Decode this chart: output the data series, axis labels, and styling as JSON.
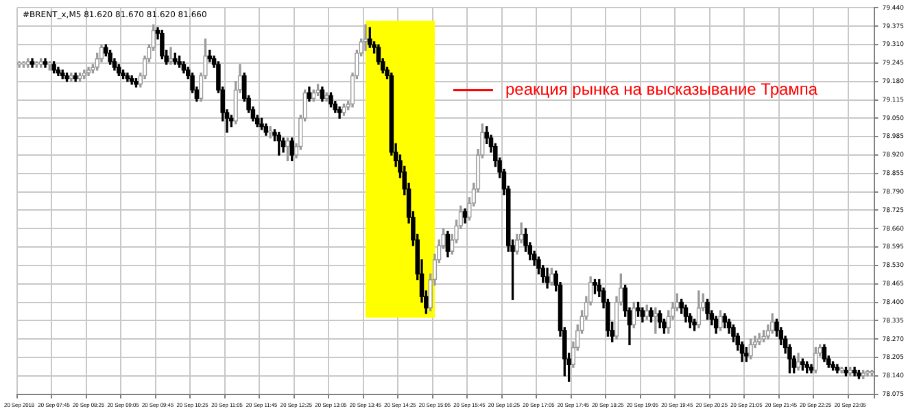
{
  "chart_data": {
    "type": "candlestick",
    "title": "#BRENT_x,M5 81.620 81.670 81.620 81.660",
    "ohlc": [
      [
        79.24,
        79.25,
        79.23,
        79.24
      ],
      [
        79.24,
        79.25,
        79.23,
        79.24
      ],
      [
        79.24,
        79.26,
        79.23,
        79.25
      ],
      [
        79.25,
        79.26,
        79.23,
        79.24
      ],
      [
        79.24,
        79.25,
        79.23,
        79.24
      ],
      [
        79.24,
        79.26,
        79.23,
        79.25
      ],
      [
        79.25,
        79.26,
        79.23,
        79.24
      ],
      [
        79.24,
        79.25,
        79.22,
        79.24
      ],
      [
        79.24,
        79.25,
        79.21,
        79.22
      ],
      [
        79.22,
        79.23,
        79.2,
        79.21
      ],
      [
        79.21,
        79.22,
        79.19,
        79.2
      ],
      [
        79.2,
        79.21,
        79.18,
        79.19
      ],
      [
        79.19,
        79.21,
        79.18,
        79.2
      ],
      [
        79.2,
        79.21,
        79.18,
        79.19
      ],
      [
        79.19,
        79.21,
        79.18,
        79.2
      ],
      [
        79.2,
        79.22,
        79.19,
        79.21
      ],
      [
        79.21,
        79.23,
        79.2,
        79.22
      ],
      [
        79.22,
        79.24,
        79.21,
        79.23
      ],
      [
        79.23,
        79.28,
        79.22,
        79.26
      ],
      [
        79.26,
        79.31,
        79.25,
        79.3
      ],
      [
        79.3,
        79.31,
        79.27,
        79.28
      ],
      [
        79.28,
        79.29,
        79.24,
        79.25
      ],
      [
        79.25,
        79.26,
        79.22,
        79.23
      ],
      [
        79.23,
        79.24,
        79.2,
        79.21
      ],
      [
        79.21,
        79.22,
        79.19,
        79.2
      ],
      [
        79.2,
        79.21,
        79.18,
        79.19
      ],
      [
        79.19,
        79.2,
        79.17,
        79.18
      ],
      [
        79.18,
        79.19,
        79.16,
        79.17
      ],
      [
        79.17,
        79.21,
        79.16,
        79.2
      ],
      [
        79.2,
        79.27,
        79.19,
        79.26
      ],
      [
        79.26,
        79.31,
        79.25,
        79.3
      ],
      [
        79.3,
        79.38,
        79.29,
        79.36
      ],
      [
        79.36,
        79.37,
        79.33,
        79.35
      ],
      [
        79.35,
        79.36,
        79.26,
        79.27
      ],
      [
        79.27,
        79.29,
        79.24,
        79.25
      ],
      [
        79.25,
        79.3,
        79.24,
        79.26
      ],
      [
        79.26,
        79.28,
        79.24,
        79.25
      ],
      [
        79.25,
        79.27,
        79.23,
        79.24
      ],
      [
        79.24,
        79.25,
        79.21,
        79.22
      ],
      [
        79.22,
        79.23,
        79.19,
        79.2
      ],
      [
        79.2,
        79.21,
        79.14,
        79.15
      ],
      [
        79.15,
        79.16,
        79.11,
        79.12
      ],
      [
        79.12,
        79.21,
        79.11,
        79.2
      ],
      [
        79.2,
        79.33,
        79.19,
        79.27
      ],
      [
        79.27,
        79.29,
        79.25,
        79.26
      ],
      [
        79.26,
        79.27,
        79.23,
        79.24
      ],
      [
        79.24,
        79.25,
        79.14,
        79.15
      ],
      [
        79.15,
        79.16,
        79.04,
        79.07
      ],
      [
        79.07,
        79.08,
        79.0,
        79.05
      ],
      [
        79.05,
        79.06,
        79.02,
        79.04
      ],
      [
        79.04,
        79.18,
        79.03,
        79.15
      ],
      [
        79.15,
        79.24,
        79.14,
        79.2
      ],
      [
        79.2,
        79.21,
        79.11,
        79.12
      ],
      [
        79.12,
        79.13,
        79.07,
        79.08
      ],
      [
        79.08,
        79.09,
        79.04,
        79.05
      ],
      [
        79.05,
        79.06,
        79.02,
        79.03
      ],
      [
        79.03,
        79.05,
        79.01,
        79.02
      ],
      [
        79.02,
        79.03,
        78.99,
        79.0
      ],
      [
        79.0,
        79.02,
        78.98,
        79.0
      ],
      [
        79.0,
        79.01,
        78.97,
        78.99
      ],
      [
        78.99,
        79.0,
        78.92,
        78.97
      ],
      [
        78.97,
        78.98,
        78.93,
        78.95
      ],
      [
        78.95,
        78.98,
        78.9,
        78.97
      ],
      [
        78.97,
        78.98,
        78.9,
        78.92
      ],
      [
        78.92,
        78.96,
        78.91,
        78.95
      ],
      [
        78.95,
        79.06,
        78.94,
        79.05
      ],
      [
        79.05,
        79.15,
        79.04,
        79.14
      ],
      [
        79.14,
        79.16,
        79.11,
        79.12
      ],
      [
        79.12,
        79.15,
        79.11,
        79.14
      ],
      [
        79.14,
        79.17,
        79.13,
        79.15
      ],
      [
        79.15,
        79.16,
        79.11,
        79.12
      ],
      [
        79.12,
        79.14,
        79.11,
        79.13
      ],
      [
        79.13,
        79.14,
        79.09,
        79.1
      ],
      [
        79.1,
        79.11,
        79.07,
        79.08
      ],
      [
        79.08,
        79.09,
        79.05,
        79.07
      ],
      [
        79.07,
        79.1,
        79.06,
        79.09
      ],
      [
        79.09,
        79.11,
        79.08,
        79.1
      ],
      [
        79.1,
        79.21,
        79.09,
        79.2
      ],
      [
        79.2,
        79.29,
        79.19,
        79.28
      ],
      [
        79.28,
        79.33,
        79.27,
        79.32
      ],
      [
        79.32,
        79.38,
        79.29,
        79.33
      ],
      [
        79.33,
        79.37,
        79.3,
        79.31
      ],
      [
        79.31,
        79.32,
        79.28,
        79.3
      ],
      [
        79.3,
        79.31,
        79.24,
        79.25
      ],
      [
        79.25,
        79.26,
        79.21,
        79.22
      ],
      [
        79.22,
        79.23,
        79.19,
        79.2
      ],
      [
        79.2,
        79.21,
        78.92,
        78.93
      ],
      [
        78.93,
        78.96,
        78.88,
        78.9
      ],
      [
        78.9,
        78.92,
        78.84,
        78.86
      ],
      [
        78.86,
        78.88,
        78.78,
        78.8
      ],
      [
        78.8,
        78.82,
        78.68,
        78.7
      ],
      [
        78.7,
        78.72,
        78.6,
        78.62
      ],
      [
        78.62,
        78.64,
        78.48,
        78.5
      ],
      [
        78.5,
        78.55,
        78.4,
        78.42
      ],
      [
        78.42,
        78.44,
        78.36,
        78.38
      ],
      [
        78.38,
        78.5,
        78.37,
        78.48
      ],
      [
        78.48,
        78.57,
        78.46,
        78.55
      ],
      [
        78.55,
        78.62,
        78.54,
        78.6
      ],
      [
        78.6,
        78.66,
        78.59,
        78.64
      ],
      [
        78.64,
        78.65,
        78.56,
        78.58
      ],
      [
        78.58,
        78.64,
        78.57,
        78.62
      ],
      [
        78.62,
        78.69,
        78.61,
        78.67
      ],
      [
        78.67,
        78.74,
        78.66,
        78.72
      ],
      [
        78.72,
        78.73,
        78.68,
        78.7
      ],
      [
        78.7,
        78.77,
        78.69,
        78.75
      ],
      [
        78.75,
        78.82,
        78.74,
        78.8
      ],
      [
        78.8,
        78.94,
        78.79,
        78.92
      ],
      [
        78.92,
        79.03,
        78.91,
        79.0
      ],
      [
        79.0,
        79.02,
        78.96,
        78.98
      ],
      [
        78.98,
        78.99,
        78.93,
        78.95
      ],
      [
        78.95,
        78.96,
        78.88,
        78.9
      ],
      [
        78.9,
        78.91,
        78.84,
        78.86
      ],
      [
        78.86,
        78.87,
        78.78,
        78.8
      ],
      [
        78.8,
        78.81,
        78.58,
        78.6
      ],
      [
        78.6,
        78.62,
        78.41,
        78.58
      ],
      [
        78.58,
        78.64,
        78.57,
        78.62
      ],
      [
        78.62,
        78.68,
        78.61,
        78.64
      ],
      [
        78.64,
        78.66,
        78.58,
        78.6
      ],
      [
        78.6,
        78.61,
        78.55,
        78.57
      ],
      [
        78.57,
        78.58,
        78.53,
        78.55
      ],
      [
        78.55,
        78.56,
        78.5,
        78.52
      ],
      [
        78.52,
        78.53,
        78.47,
        78.49
      ],
      [
        78.49,
        78.52,
        78.45,
        78.47
      ],
      [
        78.47,
        78.52,
        78.46,
        78.5
      ],
      [
        78.5,
        78.51,
        78.44,
        78.46
      ],
      [
        78.46,
        78.47,
        78.28,
        78.3
      ],
      [
        78.3,
        78.31,
        78.14,
        78.2
      ],
      [
        78.2,
        78.22,
        78.12,
        78.18
      ],
      [
        78.18,
        78.26,
        78.17,
        78.24
      ],
      [
        78.24,
        78.32,
        78.23,
        78.3
      ],
      [
        78.3,
        78.37,
        78.29,
        78.35
      ],
      [
        78.35,
        78.42,
        78.34,
        78.4
      ],
      [
        78.4,
        78.49,
        78.39,
        78.47
      ],
      [
        78.47,
        78.48,
        78.43,
        78.46
      ],
      [
        78.46,
        78.48,
        78.42,
        78.44
      ],
      [
        78.44,
        78.45,
        78.38,
        78.4
      ],
      [
        78.4,
        78.41,
        78.28,
        78.3
      ],
      [
        78.3,
        78.33,
        78.26,
        78.28
      ],
      [
        78.28,
        78.42,
        78.27,
        78.4
      ],
      [
        78.4,
        78.5,
        78.39,
        78.45
      ],
      [
        78.45,
        78.46,
        78.35,
        78.37
      ],
      [
        78.37,
        78.38,
        78.25,
        78.32
      ],
      [
        78.32,
        78.4,
        78.31,
        78.38
      ],
      [
        78.38,
        78.4,
        78.35,
        78.37
      ],
      [
        78.37,
        78.38,
        78.33,
        78.35
      ],
      [
        78.35,
        78.39,
        78.34,
        78.37
      ],
      [
        78.37,
        78.38,
        78.33,
        78.35
      ],
      [
        78.35,
        78.38,
        78.29,
        78.36
      ],
      [
        78.36,
        78.37,
        78.31,
        78.33
      ],
      [
        78.33,
        78.34,
        78.29,
        78.31
      ],
      [
        78.31,
        78.37,
        78.29,
        78.35
      ],
      [
        78.35,
        78.4,
        78.34,
        78.38
      ],
      [
        78.38,
        78.43,
        78.37,
        78.4
      ],
      [
        78.4,
        78.41,
        78.36,
        78.38
      ],
      [
        78.38,
        78.39,
        78.33,
        78.35
      ],
      [
        78.35,
        78.36,
        78.31,
        78.33
      ],
      [
        78.33,
        78.34,
        78.3,
        78.32
      ],
      [
        78.32,
        78.44,
        78.31,
        78.38
      ],
      [
        78.38,
        78.43,
        78.37,
        78.4
      ],
      [
        78.4,
        78.41,
        78.34,
        78.36
      ],
      [
        78.36,
        78.37,
        78.32,
        78.34
      ],
      [
        78.34,
        78.35,
        78.29,
        78.31
      ],
      [
        78.31,
        78.37,
        78.3,
        78.35
      ],
      [
        78.35,
        78.36,
        78.31,
        78.33
      ],
      [
        78.33,
        78.34,
        78.29,
        78.31
      ],
      [
        78.31,
        78.32,
        78.26,
        78.28
      ],
      [
        78.28,
        78.29,
        78.23,
        78.25
      ],
      [
        78.25,
        78.26,
        78.19,
        78.22
      ],
      [
        78.22,
        78.24,
        78.19,
        78.21
      ],
      [
        78.21,
        78.27,
        78.2,
        78.25
      ],
      [
        78.25,
        78.28,
        78.24,
        78.26
      ],
      [
        78.26,
        78.29,
        78.25,
        78.27
      ],
      [
        78.27,
        78.3,
        78.26,
        78.28
      ],
      [
        78.28,
        78.32,
        78.27,
        78.3
      ],
      [
        78.3,
        78.36,
        78.29,
        78.33
      ],
      [
        78.33,
        78.34,
        78.28,
        78.3
      ],
      [
        78.3,
        78.31,
        78.25,
        78.27
      ],
      [
        78.27,
        78.28,
        78.22,
        78.24
      ],
      [
        78.24,
        78.25,
        78.15,
        78.2
      ],
      [
        78.2,
        78.21,
        78.15,
        78.17
      ],
      [
        78.17,
        78.22,
        78.16,
        78.19
      ],
      [
        78.19,
        78.2,
        78.16,
        78.18
      ],
      [
        78.18,
        78.19,
        78.15,
        78.17
      ],
      [
        78.17,
        78.18,
        78.15,
        78.16
      ],
      [
        78.16,
        78.24,
        78.15,
        78.22
      ],
      [
        78.22,
        78.25,
        78.21,
        78.24
      ],
      [
        78.24,
        78.25,
        78.19,
        78.2
      ],
      [
        78.2,
        78.21,
        78.17,
        78.18
      ],
      [
        78.18,
        78.19,
        78.16,
        78.17
      ],
      [
        78.17,
        78.18,
        78.15,
        78.16
      ],
      [
        78.16,
        78.17,
        78.15,
        78.16
      ],
      [
        78.16,
        78.17,
        78.14,
        78.15
      ],
      [
        78.15,
        78.17,
        78.14,
        78.16
      ],
      [
        78.16,
        78.17,
        78.14,
        78.15
      ],
      [
        78.15,
        78.16,
        78.13,
        78.14
      ],
      [
        78.14,
        78.16,
        78.13,
        78.15
      ],
      [
        78.15,
        78.16,
        78.14,
        78.15
      ],
      [
        78.15,
        78.16,
        78.14,
        78.15
      ]
    ],
    "categories": [
      "20 Sep 2018",
      null,
      null,
      null,
      null,
      null,
      null,
      null,
      "20 Sep 07:45",
      null,
      null,
      null,
      null,
      null,
      null,
      null,
      "20 Sep 08:25",
      null,
      null,
      null,
      null,
      null,
      null,
      null,
      "20 Sep 09:05",
      null,
      null,
      null,
      null,
      null,
      null,
      null,
      "20 Sep 09:45",
      null,
      null,
      null,
      null,
      null,
      null,
      null,
      "20 Sep 10:25",
      null,
      null,
      null,
      null,
      null,
      null,
      null,
      "20 Sep 11:05",
      null,
      null,
      null,
      null,
      null,
      null,
      null,
      "20 Sep 11:45",
      null,
      null,
      null,
      null,
      null,
      null,
      null,
      "20 Sep 12:25",
      null,
      null,
      null,
      null,
      null,
      null,
      null,
      "20 Sep 13:05",
      null,
      null,
      null,
      null,
      null,
      null,
      null,
      "20 Sep 13:45",
      null,
      null,
      null,
      null,
      null,
      null,
      null,
      "20 Sep 14:25",
      null,
      null,
      null,
      null,
      null,
      null,
      null,
      "20 Sep 15:05",
      null,
      null,
      null,
      null,
      null,
      null,
      null,
      "20 Sep 15:45",
      null,
      null,
      null,
      null,
      null,
      null,
      null,
      "20 Sep 16:25",
      null,
      null,
      null,
      null,
      null,
      null,
      null,
      "20 Sep 17:05",
      null,
      null,
      null,
      null,
      null,
      null,
      null,
      "20 Sep 17:45",
      null,
      null,
      null,
      null,
      null,
      null,
      null,
      "20 Sep 18:25",
      null,
      null,
      null,
      null,
      null,
      null,
      null,
      "20 Sep 19:05",
      null,
      null,
      null,
      null,
      null,
      null,
      null,
      "20 Sep 19:45",
      null,
      null,
      null,
      null,
      null,
      null,
      null,
      "20 Sep 20:25",
      null,
      null,
      null,
      null,
      null,
      null,
      null,
      "20 Sep 21:05",
      null,
      null,
      null,
      null,
      null,
      null,
      null,
      "20 Sep 21:45",
      null,
      null,
      null,
      null,
      null,
      null,
      null,
      "20 Sep 22:25",
      null,
      null,
      null,
      null,
      null,
      null,
      null,
      "20 Sep 23:05",
      null,
      null,
      null,
      null,
      null
    ],
    "ylim": [
      78.075,
      79.44
    ],
    "yticks": [
      78.075,
      {
        "value": 78.14,
        "label": "78.140"
      },
      78.205,
      {
        "value": 78.27,
        "label": "78.270"
      },
      78.335,
      {
        "value": 78.4,
        "label": "78.400"
      },
      78.465,
      {
        "value": 78.53,
        "label": "78.530"
      },
      78.595,
      {
        "value": 78.66,
        "label": "78.660"
      },
      78.725,
      {
        "value": 78.79,
        "label": "78.790"
      },
      78.855,
      {
        "value": 78.92,
        "label": "78.920"
      },
      78.985,
      {
        "value": 79.05,
        "label": "79.050"
      },
      79.115,
      {
        "value": 79.18,
        "label": "79.180"
      },
      79.245,
      {
        "value": 79.31,
        "label": "79.310"
      },
      79.375,
      {
        "value": 79.44,
        "label": "79.440"
      }
    ],
    "grid": true,
    "legend": false,
    "bands": [
      {
        "axis": "x",
        "from": "20 Sep 13:45",
        "to": "20 Sep 15:05",
        "color": "#ffff00"
      }
    ],
    "annotations": [
      "реакция рынка на высказывание Трампа"
    ]
  }
}
